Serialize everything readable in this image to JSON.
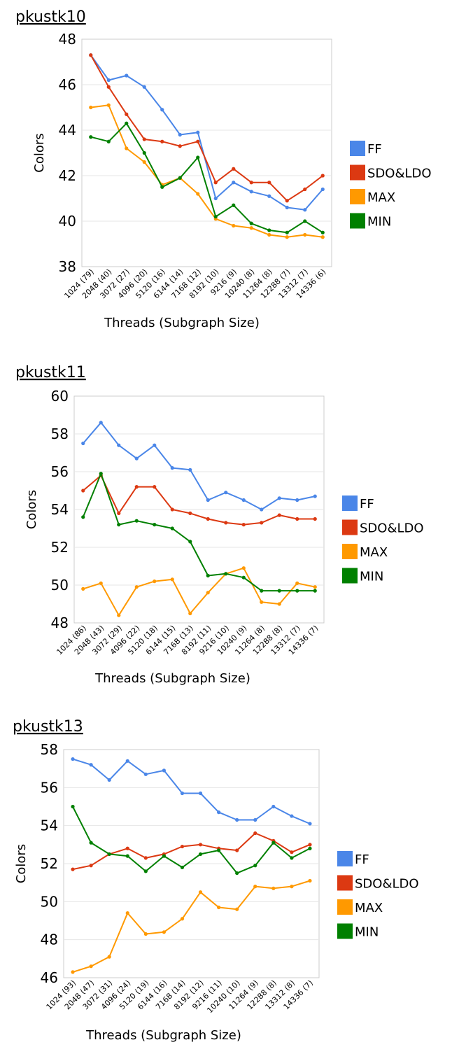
{
  "colors": {
    "FF": "#4a86e8",
    "SDO&LDO": "#dc3912",
    "MAX": "#ff9900",
    "MIN": "#008000"
  },
  "chart_data": [
    {
      "type": "line",
      "title": "pkustk10",
      "xlabel": "Threads (Subgraph Size)",
      "ylabel": "Colors",
      "ylim": [
        38,
        48
      ],
      "yticks": [
        38,
        40,
        42,
        44,
        46,
        48
      ],
      "categories": [
        "1024 (79)",
        "2048 (40)",
        "3072 (27)",
        "4096 (20)",
        "5120 (16)",
        "6144 (14)",
        "7168 (12)",
        "8192 (10)",
        "9216 (9)",
        "10240 (8)",
        "11264 (8)",
        "12288 (7)",
        "13312 (7)",
        "14336 (6)"
      ],
      "legend": "right",
      "series": [
        {
          "name": "FF",
          "values": [
            47.3,
            46.2,
            46.4,
            45.9,
            44.9,
            43.8,
            43.9,
            41.0,
            41.7,
            41.3,
            41.1,
            40.6,
            40.5,
            41.4
          ]
        },
        {
          "name": "SDO&LDO",
          "values": [
            47.3,
            45.9,
            44.7,
            43.6,
            43.5,
            43.3,
            43.5,
            41.7,
            42.3,
            41.7,
            41.7,
            40.9,
            41.4,
            42.0
          ]
        },
        {
          "name": "MAX",
          "values": [
            45.0,
            45.1,
            43.2,
            42.6,
            41.6,
            41.9,
            41.2,
            40.1,
            39.8,
            39.7,
            39.4,
            39.3,
            39.4,
            39.3
          ]
        },
        {
          "name": "MIN",
          "values": [
            43.7,
            43.5,
            44.3,
            43.0,
            41.5,
            41.9,
            42.8,
            40.2,
            40.7,
            39.9,
            39.6,
            39.5,
            40.0,
            39.5
          ]
        }
      ]
    },
    {
      "type": "line",
      "title": "pkustk11",
      "xlabel": "Threads (Subgraph Size)",
      "ylabel": "Colors",
      "ylim": [
        48,
        60
      ],
      "yticks": [
        48,
        50,
        52,
        54,
        56,
        58,
        60
      ],
      "categories": [
        "1024 (86)",
        "2048 (43)",
        "3072 (29)",
        "4096 (22)",
        "5120 (18)",
        "6144 (15)",
        "7168 (13)",
        "8192 (11)",
        "9216 (10)",
        "10240 (9)",
        "11264 (8)",
        "12288 (8)",
        "13312 (7)",
        "14336 (7)"
      ],
      "legend": "right",
      "series": [
        {
          "name": "FF",
          "values": [
            57.5,
            58.6,
            57.4,
            56.7,
            57.4,
            56.2,
            56.1,
            54.5,
            54.9,
            54.5,
            54.0,
            54.6,
            54.5,
            54.7
          ]
        },
        {
          "name": "SDO&LDO",
          "values": [
            55.0,
            55.8,
            53.8,
            55.2,
            55.2,
            54.0,
            53.8,
            53.5,
            53.3,
            53.2,
            53.3,
            53.7,
            53.5,
            53.5
          ]
        },
        {
          "name": "MAX",
          "values": [
            49.8,
            50.1,
            48.4,
            49.9,
            50.2,
            50.3,
            48.5,
            49.6,
            50.6,
            50.9,
            49.1,
            49.0,
            50.1,
            49.9
          ]
        },
        {
          "name": "MIN",
          "values": [
            53.6,
            55.9,
            53.2,
            53.4,
            53.2,
            53.0,
            52.3,
            50.5,
            50.6,
            50.4,
            49.7,
            49.7,
            49.7,
            49.7
          ]
        }
      ]
    },
    {
      "type": "line",
      "title": "pkustk13",
      "xlabel": "Threads (Subgraph Size)",
      "ylabel": "Colors",
      "ylim": [
        46,
        58
      ],
      "yticks": [
        46,
        48,
        50,
        52,
        54,
        56,
        58
      ],
      "categories": [
        "1024 (93)",
        "2048 (47)",
        "3072 (31)",
        "4096 (24)",
        "5120 (19)",
        "6144 (16)",
        "7168 (14)",
        "8192 (12)",
        "9216 (11)",
        "10240 (10)",
        "11264 (9)",
        "12288 (8)",
        "13312 (8)",
        "14336 (7)"
      ],
      "legend": "right",
      "series": [
        {
          "name": "FF",
          "values": [
            57.5,
            57.2,
            56.4,
            57.4,
            56.7,
            56.9,
            55.7,
            55.7,
            54.7,
            54.3,
            54.3,
            55.0,
            54.5,
            54.1
          ]
        },
        {
          "name": "SDO&LDO",
          "values": [
            51.7,
            51.9,
            52.5,
            52.8,
            52.3,
            52.5,
            52.9,
            53.0,
            52.8,
            52.7,
            53.6,
            53.2,
            52.6,
            53.0
          ]
        },
        {
          "name": "MAX",
          "values": [
            46.3,
            46.6,
            47.1,
            49.4,
            48.3,
            48.4,
            49.1,
            50.5,
            49.7,
            49.6,
            50.8,
            50.7,
            50.8,
            51.1
          ]
        },
        {
          "name": "MIN",
          "values": [
            55.0,
            53.1,
            52.5,
            52.4,
            51.6,
            52.4,
            51.8,
            52.5,
            52.7,
            51.5,
            51.9,
            53.1,
            52.3,
            52.8
          ]
        }
      ]
    }
  ]
}
